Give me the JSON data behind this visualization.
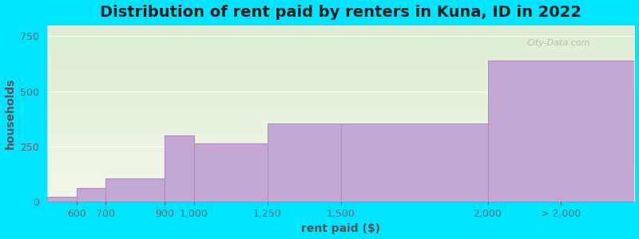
{
  "title": "Distribution of rent paid by renters in Kuna, ID in 2022",
  "xlabel": "rent paid ($)",
  "ylabel": "households",
  "bar_labels": [
    "600",
    "700",
    "900",
    "1,000",
    "1,250",
    "1,500",
    "2,000",
    "> 2,000"
  ],
  "bar_values": [
    20,
    60,
    105,
    300,
    265,
    355,
    355,
    640
  ],
  "bin_edges": [
    500,
    600,
    700,
    900,
    1000,
    1250,
    1500,
    2000,
    2500
  ],
  "bar_color": "#c4a8d4",
  "bar_edgecolor": "#b090c0",
  "ylim": [
    0,
    800
  ],
  "yticks": [
    0,
    250,
    500,
    750
  ],
  "background_color": "#00e5ff",
  "plot_bg_top": "#deecd4",
  "plot_bg_bottom": "#f2f7ec",
  "title_fontsize": 14,
  "axis_label_fontsize": 10,
  "tick_fontsize": 9,
  "watermark_text": "City-Data.com",
  "figsize": [
    8.0,
    3.0
  ],
  "dpi": 100
}
